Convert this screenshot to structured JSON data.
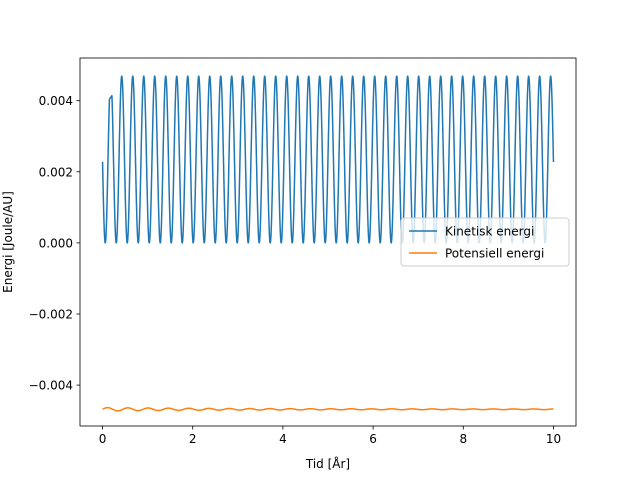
{
  "chart_data": {
    "type": "line",
    "title": "",
    "xlabel": "Tid [År]",
    "ylabel": "Energi [Joule/AU]",
    "xlim": [
      -0.5,
      10.5
    ],
    "ylim": [
      -0.00515,
      0.0052
    ],
    "xticks": [
      0,
      2,
      4,
      6,
      8,
      10
    ],
    "xtick_labels": [
      "0",
      "2",
      "4",
      "6",
      "8",
      "10"
    ],
    "yticks": [
      -0.004,
      -0.002,
      0.0,
      0.002,
      0.004
    ],
    "ytick_labels": [
      "−0.004",
      "−0.002",
      "0.000",
      "0.002",
      "0.004"
    ],
    "grid": false,
    "legend_position": "center-right",
    "series": [
      {
        "name": "Kinetisk energi",
        "color": "#1f77b4",
        "form": "oscillation",
        "x_range": [
          0.0,
          10.0
        ],
        "period": 0.2439,
        "min": 0.0,
        "max": 0.00469,
        "start_value": 0.00228,
        "end_value": 0.00245,
        "summary_points": [
          {
            "x": 0.0,
            "y": 0.00228
          },
          {
            "x": 0.1,
            "y": 0.0
          },
          {
            "x": 0.2,
            "y": 0.00462
          },
          {
            "x": 0.45,
            "y": 0.00469
          },
          {
            "x": 10.0,
            "y": 0.00245
          }
        ]
      },
      {
        "name": "Potensiell energi",
        "color": "#ff7f0e",
        "form": "nearly-constant",
        "x_range": [
          0.0,
          10.0
        ],
        "mean": -0.00468,
        "ripple_amplitude": 2e-05,
        "ripple_period": 0.45,
        "summary_points": [
          {
            "x": 0.0,
            "y": -0.00468
          },
          {
            "x": 0.5,
            "y": -0.00473
          },
          {
            "x": 5.0,
            "y": -0.00468
          },
          {
            "x": 10.0,
            "y": -0.00468
          }
        ]
      }
    ]
  }
}
